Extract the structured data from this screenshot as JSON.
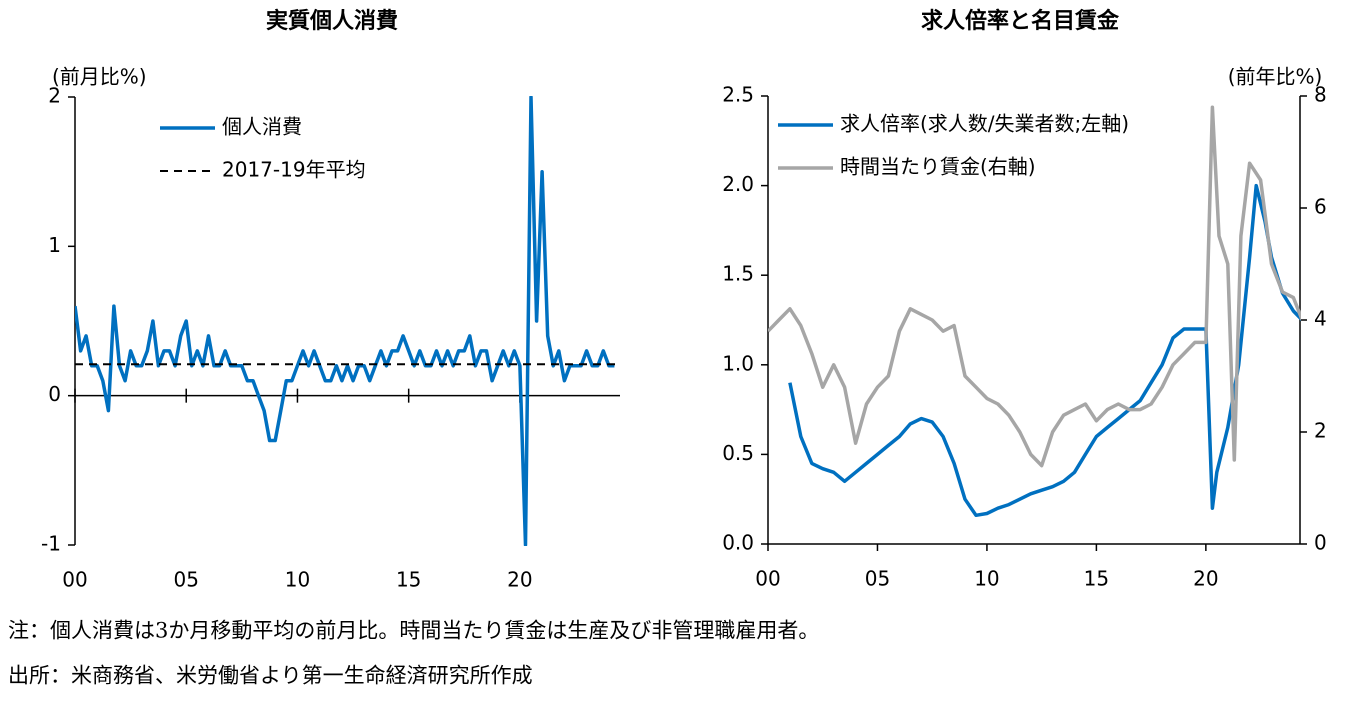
{
  "chart_data": [
    {
      "type": "line",
      "title": "実質個人消費",
      "y_label": "(前月比%)",
      "legend": "upper center",
      "zero_axis": true,
      "xlim": [
        2000,
        2024.5
      ],
      "xticks": [
        {
          "value": 2000,
          "label": "00"
        },
        {
          "value": 2005,
          "label": "05"
        },
        {
          "value": 2010,
          "label": "10"
        },
        {
          "value": 2015,
          "label": "15"
        },
        {
          "value": 2020,
          "label": "20"
        }
      ],
      "ylim": [
        -1,
        2
      ],
      "yticks": [
        -1,
        0,
        1,
        2
      ],
      "series": [
        {
          "name": "個人消費",
          "color": "#0070c0",
          "dashed": false,
          "x": [
            2000,
            2000.25,
            2000.5,
            2000.75,
            2001,
            2001.25,
            2001.5,
            2001.75,
            2002,
            2002.25,
            2002.5,
            2002.75,
            2003,
            2003.25,
            2003.5,
            2003.75,
            2004,
            2004.25,
            2004.5,
            2004.75,
            2005,
            2005.25,
            2005.5,
            2005.75,
            2006,
            2006.25,
            2006.5,
            2006.75,
            2007,
            2007.25,
            2007.5,
            2007.75,
            2008,
            2008.25,
            2008.5,
            2008.75,
            2009,
            2009.25,
            2009.5,
            2009.75,
            2010,
            2010.25,
            2010.5,
            2010.75,
            2011,
            2011.25,
            2011.5,
            2011.75,
            2012,
            2012.25,
            2012.5,
            2012.75,
            2013,
            2013.25,
            2013.5,
            2013.75,
            2014,
            2014.25,
            2014.5,
            2014.75,
            2015,
            2015.25,
            2015.5,
            2015.75,
            2016,
            2016.25,
            2016.5,
            2016.75,
            2017,
            2017.25,
            2017.5,
            2017.75,
            2018,
            2018.25,
            2018.5,
            2018.75,
            2019,
            2019.25,
            2019.5,
            2019.75,
            2020,
            2020.25,
            2020.5,
            2020.75,
            2021,
            2021.25,
            2021.5,
            2021.75,
            2022,
            2022.25,
            2022.5,
            2022.75,
            2023,
            2023.25,
            2023.5,
            2023.75,
            2024,
            2024.25
          ],
          "values": [
            0.6,
            0.3,
            0.4,
            0.2,
            0.2,
            0.1,
            -0.1,
            0.6,
            0.2,
            0.1,
            0.3,
            0.2,
            0.2,
            0.3,
            0.5,
            0.2,
            0.3,
            0.3,
            0.2,
            0.4,
            0.5,
            0.2,
            0.3,
            0.2,
            0.4,
            0.2,
            0.2,
            0.3,
            0.2,
            0.2,
            0.2,
            0.1,
            0.1,
            0.0,
            -0.1,
            -0.3,
            -0.3,
            -0.1,
            0.1,
            0.1,
            0.2,
            0.3,
            0.2,
            0.3,
            0.2,
            0.1,
            0.1,
            0.2,
            0.1,
            0.2,
            0.1,
            0.2,
            0.2,
            0.1,
            0.2,
            0.3,
            0.2,
            0.3,
            0.3,
            0.4,
            0.3,
            0.2,
            0.3,
            0.2,
            0.2,
            0.3,
            0.2,
            0.3,
            0.2,
            0.3,
            0.3,
            0.4,
            0.2,
            0.3,
            0.3,
            0.1,
            0.2,
            0.3,
            0.2,
            0.3,
            0.2,
            -1.0,
            2.0,
            0.5,
            1.5,
            0.4,
            0.2,
            0.3,
            0.1,
            0.2,
            0.2,
            0.2,
            0.3,
            0.2,
            0.2,
            0.3,
            0.2,
            0.2
          ]
        },
        {
          "name": "2017-19年平均",
          "color": "#000000",
          "dashed": true,
          "x": [
            2000,
            2024.5
          ],
          "values": [
            0.21,
            0.21
          ]
        }
      ]
    },
    {
      "type": "line",
      "title": "求人倍率と名目賃金",
      "y2_label": "(前年比%)",
      "legend": "upper left",
      "zero_axis": false,
      "xlim": [
        2000,
        2024.3
      ],
      "xticks": [
        {
          "value": 2000,
          "label": "00"
        },
        {
          "value": 2005,
          "label": "05"
        },
        {
          "value": 2010,
          "label": "10"
        },
        {
          "value": 2015,
          "label": "15"
        },
        {
          "value": 2020,
          "label": "20"
        }
      ],
      "ylim": [
        0,
        2.5
      ],
      "yticks": [
        {
          "value": 0,
          "label": "0.0"
        },
        0.5,
        {
          "value": 1,
          "label": "1.0"
        },
        1.5,
        {
          "value": 2,
          "label": "2.0"
        },
        2.5
      ],
      "y2lim": [
        0,
        8
      ],
      "y2ticks": [
        0,
        2,
        4,
        6,
        8
      ],
      "series": [
        {
          "name": "求人倍率(求人数/失業者数;左軸)",
          "color": "#0070c0",
          "axis": "y",
          "x": [
            2001,
            2001.5,
            2002,
            2002.5,
            2003,
            2003.5,
            2004,
            2004.5,
            2005,
            2005.5,
            2006,
            2006.5,
            2007,
            2007.5,
            2008,
            2008.5,
            2009,
            2009.5,
            2010,
            2010.5,
            2011,
            2011.5,
            2012,
            2012.5,
            2013,
            2013.5,
            2014,
            2014.5,
            2015,
            2015.5,
            2016,
            2016.5,
            2017,
            2017.5,
            2018,
            2018.5,
            2019,
            2019.5,
            2020,
            2020.3,
            2020.5,
            2021,
            2021.5,
            2022,
            2022.3,
            2022.7,
            2023,
            2023.5,
            2024,
            2024.4
          ],
          "values": [
            0.9,
            0.6,
            0.45,
            0.42,
            0.4,
            0.35,
            0.4,
            0.45,
            0.5,
            0.55,
            0.6,
            0.67,
            0.7,
            0.68,
            0.6,
            0.45,
            0.25,
            0.16,
            0.17,
            0.2,
            0.22,
            0.25,
            0.28,
            0.3,
            0.32,
            0.35,
            0.4,
            0.5,
            0.6,
            0.65,
            0.7,
            0.75,
            0.8,
            0.9,
            1.0,
            1.15,
            1.2,
            1.2,
            1.2,
            0.2,
            0.4,
            0.65,
            1.0,
            1.6,
            2.0,
            1.8,
            1.6,
            1.4,
            1.3,
            1.25
          ]
        },
        {
          "name": "時間当たり賃金(右軸)",
          "color": "#a6a6a6",
          "axis": "y2",
          "x": [
            2000,
            2000.5,
            2001,
            2001.5,
            2002,
            2002.5,
            2003,
            2003.5,
            2004,
            2004.5,
            2005,
            2005.5,
            2006,
            2006.5,
            2007,
            2007.5,
            2008,
            2008.5,
            2009,
            2009.5,
            2010,
            2010.5,
            2011,
            2011.5,
            2012,
            2012.5,
            2013,
            2013.5,
            2014,
            2014.5,
            2015,
            2015.5,
            2016,
            2016.5,
            2017,
            2017.5,
            2018,
            2018.5,
            2019,
            2019.5,
            2020,
            2020.3,
            2020.6,
            2021,
            2021.3,
            2021.6,
            2022,
            2022.5,
            2023,
            2023.5,
            2024,
            2024.4
          ],
          "values": [
            3.8,
            4.0,
            4.2,
            3.9,
            3.4,
            2.8,
            3.2,
            2.8,
            1.8,
            2.5,
            2.8,
            3.0,
            3.8,
            4.2,
            4.1,
            4.0,
            3.8,
            3.9,
            3.0,
            2.8,
            2.6,
            2.5,
            2.3,
            2.0,
            1.6,
            1.4,
            2.0,
            2.3,
            2.4,
            2.5,
            2.2,
            2.4,
            2.5,
            2.4,
            2.4,
            2.5,
            2.8,
            3.2,
            3.4,
            3.6,
            3.6,
            7.8,
            5.5,
            5.0,
            1.5,
            5.5,
            6.8,
            6.5,
            5.0,
            4.5,
            4.4,
            4.0
          ]
        }
      ]
    }
  ],
  "notes": [
    "注：個人消費は3か月移動平均の前月比。時間当たり賃金は生産及び非管理職雇用者。",
    "出所：米商務省、米労働省より第一生命経済研究所作成"
  ]
}
